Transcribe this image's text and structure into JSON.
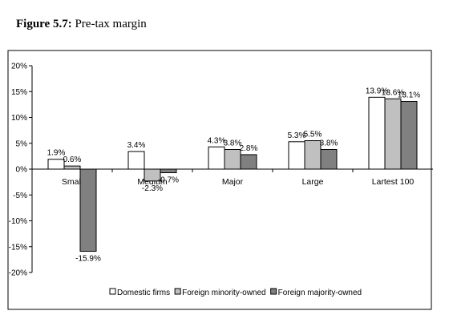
{
  "figure": {
    "title_number": "Figure 5.7:",
    "title_text": "Pre-tax margin"
  },
  "chart_data": {
    "type": "bar",
    "title": "Pre-tax margin",
    "categories": [
      "Small",
      "Medium",
      "Major",
      "Large",
      "Lartest 100"
    ],
    "series": [
      {
        "name": "Domestic firms",
        "color": "#ffffff",
        "values": [
          1.9,
          3.4,
          4.3,
          5.3,
          13.9
        ],
        "labels": [
          "1.9%",
          "3.4%",
          "4.3%",
          "5.3%",
          "13.9%"
        ]
      },
      {
        "name": "Foreign minority-owned",
        "color": "#c0c0c0",
        "values": [
          0.6,
          -2.3,
          3.8,
          5.5,
          13.6
        ],
        "labels": [
          "0.6%",
          "-2.3%",
          "3.8%",
          "5.5%",
          "13.6%"
        ]
      },
      {
        "name": "Foreign majority-owned",
        "color": "#808080",
        "values": [
          -15.9,
          -0.7,
          2.8,
          3.8,
          13.1
        ],
        "labels": [
          "-15.9%",
          "-0.7%",
          "2.8%",
          "3.8%",
          "13.1%"
        ]
      }
    ],
    "ylim": [
      -20,
      20
    ],
    "yticks": [
      20,
      15,
      10,
      5,
      0,
      -5,
      -10,
      -15,
      -20
    ],
    "ytick_labels": [
      "20%",
      "15%",
      "10%",
      "5%",
      "0%",
      "-5%",
      "-10%",
      "-15%",
      "-20%"
    ],
    "grid": false,
    "legend_position": "bottom"
  }
}
